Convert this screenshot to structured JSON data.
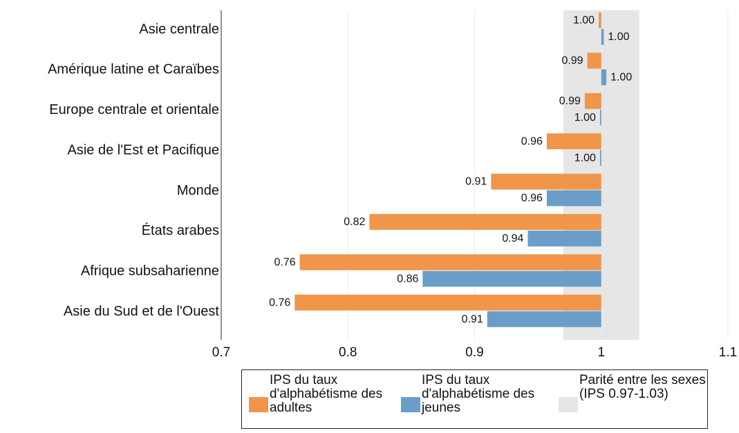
{
  "chart_data": {
    "type": "bar",
    "orientation": "horizontal",
    "base": 1,
    "categories": [
      "Asie centrale",
      "Amérique latine et Caraïbes",
      "Europe centrale et orientale",
      "Asie de l'Est et Pacifique",
      "Monde",
      "États arabes",
      "Afrique subsaharienne",
      "Asie du Sud et de l'Ouest"
    ],
    "series": [
      {
        "name": "IPS du taux d'alphabétisme des adultes",
        "color": "#f0954a",
        "values": [
          0.998,
          0.989,
          0.987,
          0.957,
          0.913,
          0.817,
          0.762,
          0.758
        ],
        "value_labels": [
          "1.00",
          "0.99",
          "0.99",
          "0.96",
          "0.91",
          "0.82",
          "0.76",
          "0.76"
        ]
      },
      {
        "name": "IPS du taux d'alphabétisme des jeunes",
        "color": "#6a9ec8",
        "values": [
          1.002,
          1.004,
          0.999,
          0.999,
          0.957,
          0.942,
          0.859,
          0.91
        ],
        "value_labels": [
          "1.00",
          "1.00",
          "1.00",
          "1.00",
          "0.96",
          "0.94",
          "0.86",
          "0.91"
        ]
      }
    ],
    "parity_band": {
      "name": "Parité entre les sexes (IPS 0.97-1.03)",
      "range": [
        0.97,
        1.03
      ],
      "color": "#e6e6e6"
    },
    "xlim": [
      0.7,
      1.1
    ],
    "xticks": [
      0.7,
      0.8,
      0.9,
      1,
      1.1
    ],
    "grid": true
  }
}
